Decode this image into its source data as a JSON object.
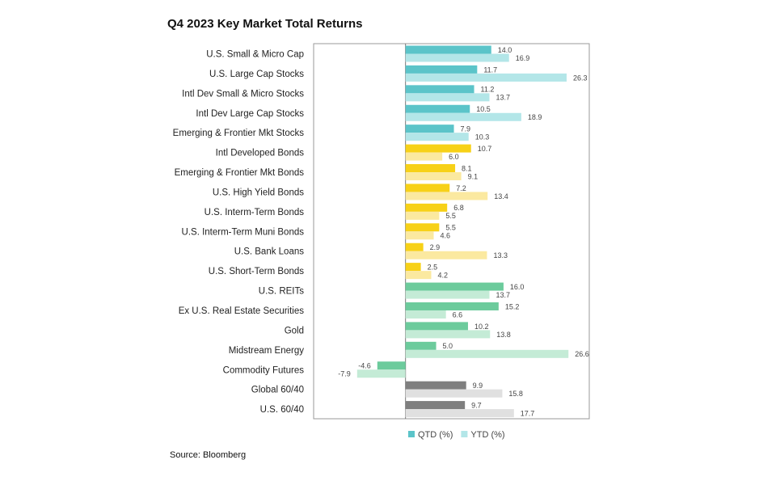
{
  "chart_data": {
    "type": "bar",
    "orientation": "horizontal",
    "title": "Q4 2023 Key Market Total Returns",
    "source": "Source: Bloomberg",
    "categories": [
      "U.S. Small & Micro Cap",
      "U.S. Large Cap Stocks",
      "Intl Dev Small & Micro Stocks",
      "Intl Dev Large Cap Stocks",
      "Emerging & Frontier Mkt Stocks",
      "Intl Developed Bonds",
      "Emerging & Frontier Mkt Bonds",
      "U.S. High Yield Bonds",
      "U.S. Interm-Term Bonds",
      "U.S. Interm-Term Muni Bonds",
      "U.S. Bank Loans",
      "U.S. Short-Term Bonds",
      "U.S. REITs",
      "Ex U.S. Real Estate Securities",
      "Gold",
      "Midstream Energy",
      "Commodity Futures",
      "Global 60/40",
      "U.S. 60/40"
    ],
    "series": [
      {
        "name": "QTD (%)",
        "color": "#5bc4c9",
        "values": [
          14.0,
          11.7,
          11.2,
          10.5,
          7.9,
          10.7,
          8.1,
          7.2,
          6.8,
          5.5,
          2.9,
          2.5,
          16.0,
          15.2,
          10.2,
          5.0,
          -4.6,
          9.9,
          9.7
        ],
        "value_labels": [
          "14.0",
          "11.7",
          "11.2",
          "10.5",
          "7.9",
          "10.7",
          "8.1",
          "7.2",
          "6.8",
          "5.5",
          "2.9",
          "2.5",
          "16.0",
          "15.2",
          "10.2",
          "5.0",
          "-4.6",
          "9.9",
          "9.7"
        ],
        "colors": [
          "#5bc4c9",
          "#5bc4c9",
          "#5bc4c9",
          "#5bc4c9",
          "#5bc4c9",
          "#f7d117",
          "#f7d117",
          "#f7d117",
          "#f7d117",
          "#f7d117",
          "#f7d117",
          "#f7d117",
          "#6ccb9c",
          "#6ccb9c",
          "#6ccb9c",
          "#6ccb9c",
          "#6ccb9c",
          "#7f7f7f",
          "#7f7f7f"
        ]
      },
      {
        "name": "YTD (%)",
        "color": "#b3e6e8",
        "values": [
          16.9,
          26.3,
          13.7,
          18.9,
          10.3,
          6.0,
          9.1,
          13.4,
          5.5,
          4.6,
          13.3,
          4.2,
          13.7,
          6.6,
          13.8,
          26.6,
          -7.9,
          15.8,
          17.7
        ],
        "value_labels": [
          "16.9",
          "26.3",
          "13.7",
          "18.9",
          "10.3",
          "6.0",
          "9.1",
          "13.4",
          "5.5",
          "4.6",
          "13.3",
          "4.2",
          "13.7",
          "6.6",
          "13.8",
          "26.6",
          "-7.9",
          "15.8",
          "17.7"
        ],
        "colors": [
          "#b3e6e8",
          "#b3e6e8",
          "#b3e6e8",
          "#b3e6e8",
          "#b3e6e8",
          "#fbe9a0",
          "#fbe9a0",
          "#fbe9a0",
          "#fbe9a0",
          "#fbe9a0",
          "#fbe9a0",
          "#fbe9a0",
          "#c4ebd6",
          "#c4ebd6",
          "#c4ebd6",
          "#c4ebd6",
          "#c4ebd6",
          "#e0e0e0",
          "#e0e0e0"
        ]
      }
    ],
    "xlim": [
      -15,
      30
    ],
    "legend": "bottom"
  }
}
